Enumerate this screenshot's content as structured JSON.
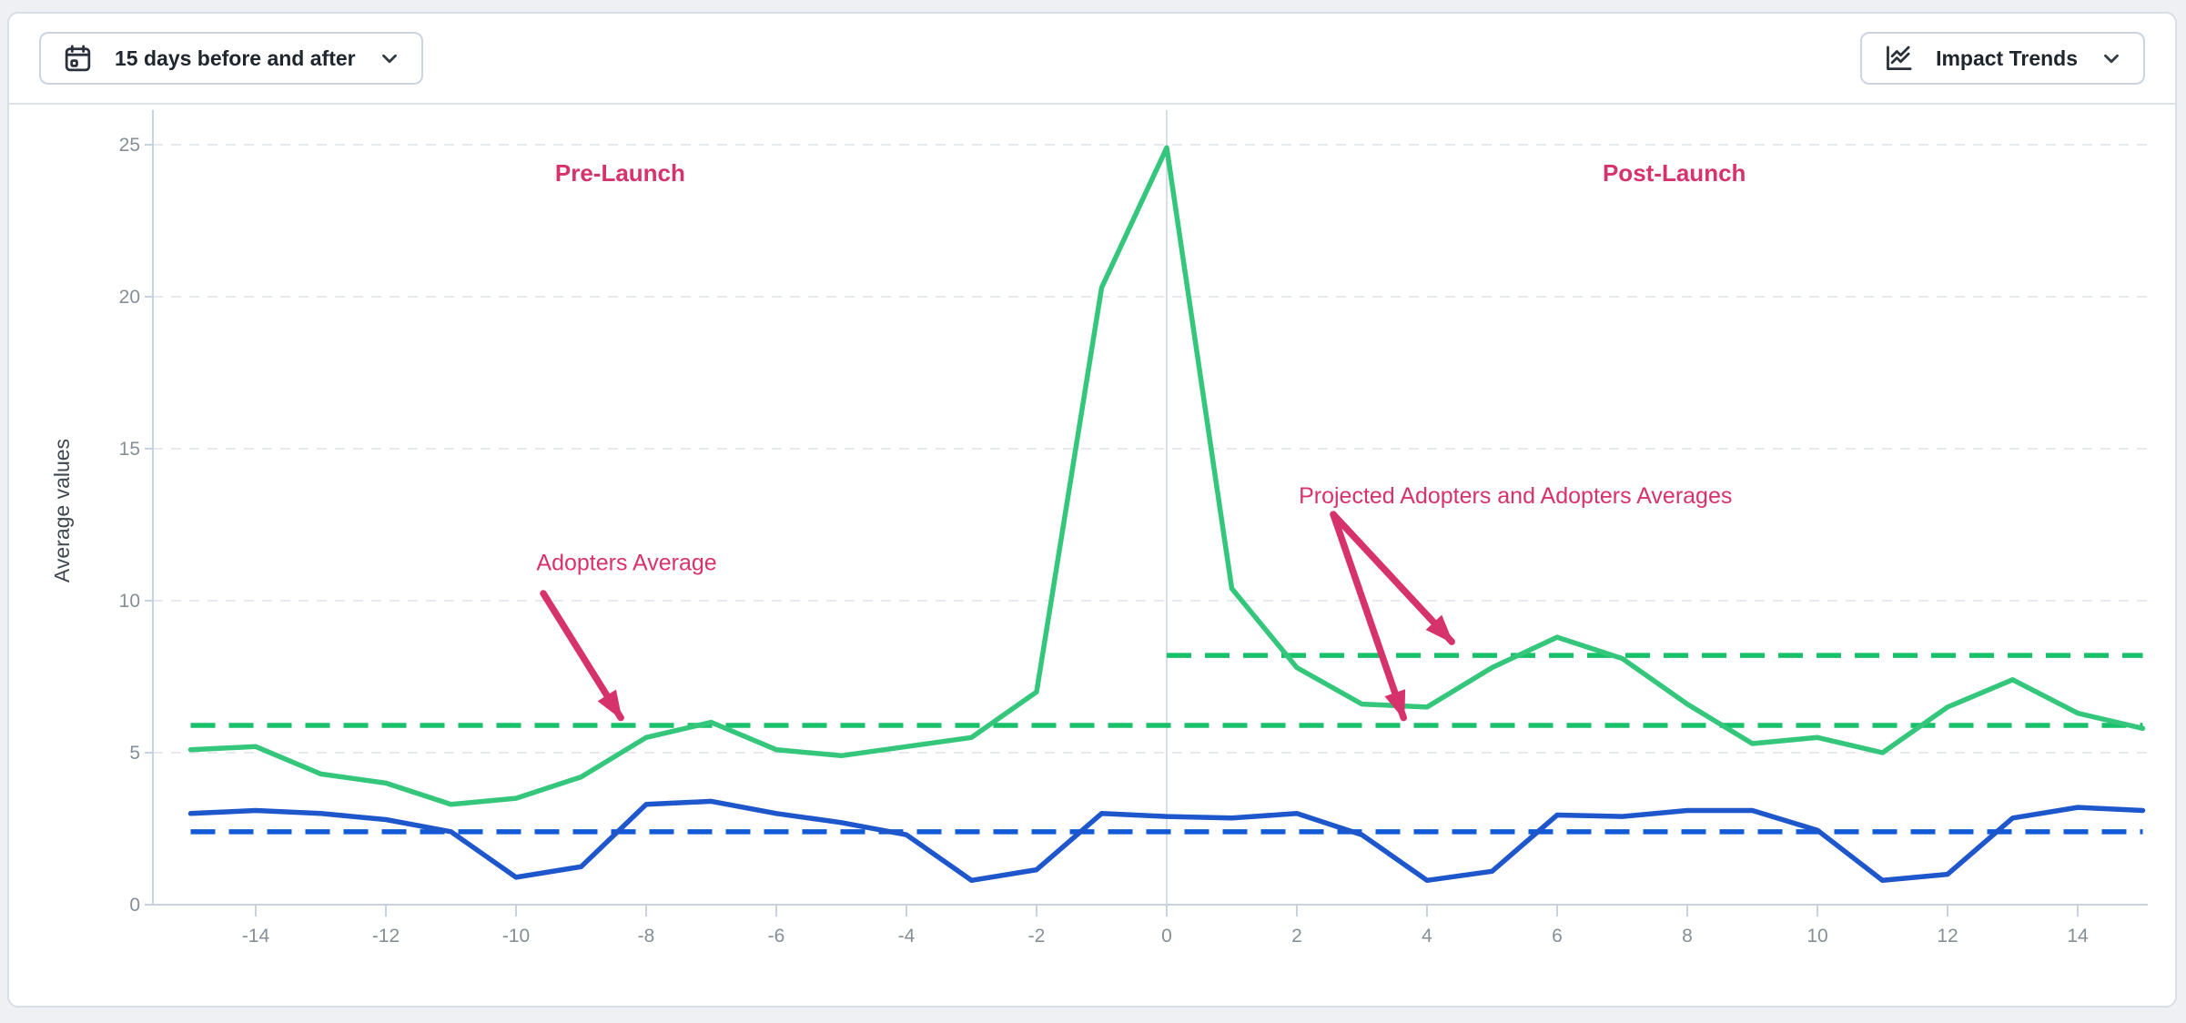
{
  "toolbar": {
    "date_range_button": {
      "label": "15 days before and after",
      "icon": "calendar-icon",
      "has_dropdown": true
    },
    "view_button": {
      "label": "Impact Trends",
      "icon": "chart-line-icon",
      "has_dropdown": true
    }
  },
  "colors": {
    "annotation": "#d6336c",
    "adopters_line": "#34c77b",
    "adopters_average_line": "#18c06a",
    "projected_line": "#1e56cb",
    "projected_average_line": "#1159d6",
    "axis": "#c9d3e0",
    "grid": "#e6e9ee",
    "launch_divider": "#dadfe7",
    "tick_text": "#868e96",
    "axis_label": "#40474f",
    "card_border": "#d9dfe8",
    "page_background": "#eef0f4"
  },
  "chart_data": {
    "type": "line",
    "title": "",
    "xlabel": "",
    "ylabel": "Average values",
    "ylim": [
      0,
      26.3
    ],
    "xlim": [
      -15,
      15
    ],
    "grid": true,
    "legend_position": "none",
    "launch_x": 0,
    "xticks": [
      -14,
      -12,
      -10,
      -8,
      -6,
      -4,
      -2,
      0,
      2,
      4,
      6,
      8,
      10,
      12,
      14
    ],
    "yticks": [
      0,
      5,
      10,
      15,
      20,
      25
    ],
    "x": [
      -15,
      -14,
      -13,
      -12,
      -11,
      -10,
      -9,
      -8,
      -7,
      -6,
      -5,
      -4,
      -3,
      -2,
      -1,
      0,
      1,
      2,
      3,
      4,
      5,
      6,
      7,
      8,
      9,
      10,
      11,
      12,
      13,
      14,
      15
    ],
    "series": [
      {
        "name": "Adopters",
        "color": "#34c77b",
        "values": [
          5.1,
          5.2,
          4.3,
          4.0,
          3.3,
          3.5,
          4.2,
          5.5,
          6.0,
          5.1,
          4.9,
          5.2,
          5.5,
          7.0,
          20.3,
          24.9,
          10.4,
          7.8,
          6.6,
          6.5,
          7.8,
          8.8,
          8.1,
          6.6,
          5.3,
          5.5,
          5.0,
          6.5,
          7.4,
          6.3,
          5.8
        ]
      },
      {
        "name": "Projected Adopters",
        "color": "#1e56cb",
        "values": [
          3.0,
          3.1,
          3.0,
          2.8,
          2.4,
          0.9,
          1.25,
          3.3,
          3.4,
          3.0,
          2.7,
          2.3,
          0.8,
          1.15,
          3.0,
          2.9,
          2.85,
          3.0,
          2.3,
          0.8,
          1.1,
          2.95,
          2.9,
          3.1,
          3.1,
          2.45,
          0.8,
          1.0,
          2.85,
          3.2,
          3.1
        ]
      }
    ],
    "reference_lines": [
      {
        "name": "Adopters pre-launch average",
        "value": 5.9,
        "x_start": -15,
        "x_end": 15,
        "color": "#18c06a",
        "style": "dashed"
      },
      {
        "name": "Adopters post-launch average",
        "value": 8.2,
        "x_start": 0,
        "x_end": 15,
        "color": "#18c06a",
        "style": "dashed"
      },
      {
        "name": "Projected Adopters average",
        "value": 2.4,
        "x_start": -15,
        "x_end": 15,
        "color": "#1159d6",
        "style": "dashed"
      }
    ],
    "annotations": [
      {
        "id": "pre-launch-label",
        "label": "Pre-Launch",
        "x": -8.4,
        "y": 23.8,
        "bold": true
      },
      {
        "id": "post-launch-label",
        "label": "Post-Launch",
        "x": 7.8,
        "y": 23.8,
        "bold": true
      },
      {
        "id": "adopters-average-label",
        "label": "Adopters Average",
        "x": -8.3,
        "y": 11.0,
        "bold": false,
        "arrows": [
          {
            "from": [
              -9.58,
              10.24
            ],
            "to": [
              -8.39,
              6.15
            ]
          }
        ]
      },
      {
        "id": "projected-averages-label",
        "label": "Projected Adopters and Adopters Averages",
        "x": 5.36,
        "y": 13.2,
        "bold": false,
        "arrows": [
          {
            "from": [
              2.56,
              12.84
            ],
            "to": [
              4.38,
              8.65
            ]
          },
          {
            "from": [
              2.56,
              12.84
            ],
            "to": [
              3.64,
              6.15
            ]
          }
        ]
      }
    ]
  }
}
